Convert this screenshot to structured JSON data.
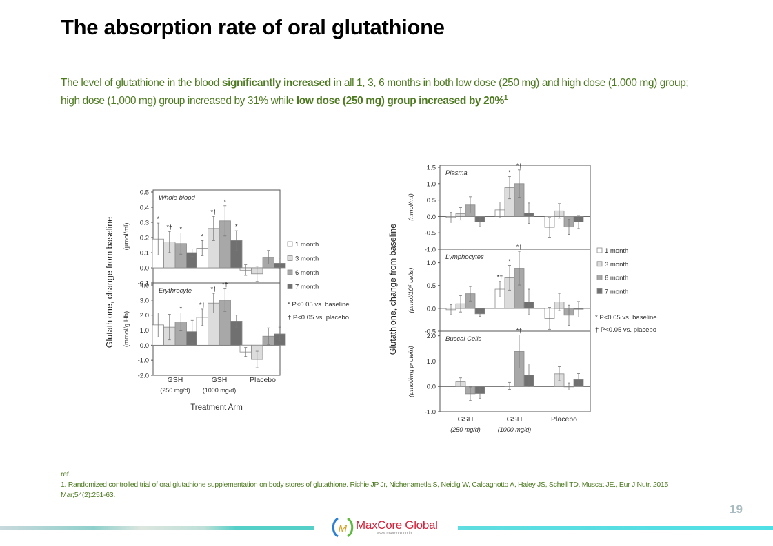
{
  "slide": {
    "title": "The absorption rate of oral glutathione",
    "description": {
      "p1": "The level of glutathione in the blood ",
      "b1": "significantly increased",
      "p2": " in all 1, 3, 6 months in both low dose (250 mg) and high dose (1,000 mg) group; high dose (1,000 mg) group increased by 31% while ",
      "b2": "low dose (250 mg) group increased by 20%",
      "sup": "1"
    },
    "reference": {
      "label": "ref.",
      "text": "1. Randomized controlled trial of oral glutathione supplementation on body stores of glutathione. Richie JP Jr, Nichenametla S, Neidig W, Calcagnotto A, Haley JS, Schell TD, Muscat JE., Eur J Nutr. 2015 Mar;54(2):251-63."
    },
    "page_number": "19",
    "logo": {
      "name": "MaxCore Global",
      "url": "www.maxcore.co.kr",
      "icon": "m-leaf-logo-icon"
    }
  },
  "colors": {
    "text_green": "#4e7a22",
    "series": [
      "#ffffff",
      "#dcdcdc",
      "#a8a8a8",
      "#707070"
    ],
    "bar_edge": "#8a8a8a",
    "footer_teal": "#55d0c8",
    "logo_red": "#d4243c"
  },
  "chart_data": [
    {
      "type": "bar",
      "title": "Whole blood / Erythrocyte",
      "ylabel": "Glutathione, change from baseline",
      "xlabel": "Treatment Arm",
      "categories": [
        "GSH|(250 mg/d)",
        "GSH|(1000 mg/d)",
        "Placebo"
      ],
      "legend": [
        "1 month",
        "3 month",
        "6 month",
        "7 month"
      ],
      "legend_position": "right",
      "notes": [
        "* P<0.05 vs. baseline",
        "† P<0.05 vs. placebo"
      ],
      "panels": [
        {
          "name": "Whole blood",
          "unit": "(µmol/ml)",
          "ylim": [
            -0.1,
            0.5
          ],
          "ticks": [
            "0.5",
            "0.4",
            "0.3",
            "0.2",
            "0.1",
            "0.0",
            "-0.1"
          ],
          "tick_values": [
            0.5,
            0.4,
            0.3,
            0.2,
            0.1,
            0.0,
            -0.1
          ],
          "series": [
            {
              "name": "1 month",
              "values": [
                0.19,
                0.13,
                -0.015
              ],
              "err": [
                0.105,
                0.05,
                0.035
              ],
              "marks": [
                "*",
                "*",
                ""
              ]
            },
            {
              "name": "3 month",
              "values": [
                0.17,
                0.26,
                -0.04
              ],
              "err": [
                0.07,
                0.08,
                0.05
              ],
              "marks": [
                "*†",
                "*†",
                ""
              ]
            },
            {
              "name": "6 month",
              "values": [
                0.16,
                0.31,
                0.07
              ],
              "err": [
                0.07,
                0.1,
                0.045
              ],
              "marks": [
                "*",
                "*",
                ""
              ]
            },
            {
              "name": "7 month",
              "values": [
                0.1,
                0.18,
                0.03
              ],
              "err": [
                0.025,
                0.065,
                0.035
              ],
              "marks": [
                "",
                "*",
                ""
              ]
            }
          ]
        },
        {
          "name": "Erythrocyte",
          "unit": "(mmol/g Hb)",
          "ylim": [
            -2.0,
            4.0
          ],
          "ticks": [
            "4.0",
            "3.0",
            "2.0",
            "1.0",
            "0.0",
            "-1.0",
            "-2.0"
          ],
          "tick_values": [
            4,
            3,
            2,
            1,
            0,
            -1,
            -2
          ],
          "series": [
            {
              "name": "1 month",
              "values": [
                1.35,
                1.85,
                -0.45
              ],
              "err": [
                0.8,
                0.55,
                0.3
              ],
              "marks": [
                "",
                "*†",
                ""
              ]
            },
            {
              "name": "3 month",
              "values": [
                1.2,
                2.8,
                -0.95
              ],
              "err": [
                0.85,
                0.65,
                0.55
              ],
              "marks": [
                "",
                "*†",
                ""
              ]
            },
            {
              "name": "6 month",
              "values": [
                1.55,
                3.0,
                0.6
              ],
              "err": [
                0.6,
                0.75,
                0.55
              ],
              "marks": [
                "*",
                "*†",
                ""
              ]
            },
            {
              "name": "7 month",
              "values": [
                0.9,
                1.6,
                0.75
              ],
              "err": [
                0.75,
                0.4,
                0.45
              ],
              "marks": [
                "",
                "",
                ""
              ]
            }
          ]
        }
      ]
    },
    {
      "type": "bar",
      "title": "Plasma / Lymphocytes / Buccal Cells",
      "ylabel": "Glutathione, change from baseline",
      "xlabel": "",
      "categories": [
        "GSH|(250 mg/d)",
        "GSH|(1000 mg/d)",
        "Placebo"
      ],
      "legend": [
        "1 month",
        "3 month",
        "6 month",
        "7 month"
      ],
      "legend_position": "right",
      "notes": [
        "* P<0.05 vs. baseline",
        "† P<0.05 vs. placebo"
      ],
      "panels": [
        {
          "name": "Plasma",
          "unit": "(nmol/ml)",
          "ylim": [
            -1.0,
            1.5
          ],
          "ticks": [
            "1.5",
            "1.0",
            "0.5",
            "0.0",
            "-0.5",
            "-1.0"
          ],
          "tick_values": [
            1.5,
            1.0,
            0.5,
            0.0,
            -0.5,
            -1.0
          ],
          "series": [
            {
              "name": "1 month",
              "values": [
                -0.03,
                0.2,
                -0.33
              ],
              "err": [
                0.15,
                0.24,
                0.3
              ],
              "marks": [
                "",
                "",
                ""
              ]
            },
            {
              "name": "3 month",
              "values": [
                0.08,
                0.88,
                0.17
              ],
              "err": [
                0.19,
                0.34,
                0.22
              ],
              "marks": [
                "",
                "*",
                ""
              ]
            },
            {
              "name": "6 month",
              "values": [
                0.35,
                1.0,
                -0.32
              ],
              "err": [
                0.25,
                0.42,
                0.23
              ],
              "marks": [
                "",
                "*†",
                ""
              ]
            },
            {
              "name": "7 month",
              "values": [
                -0.17,
                0.1,
                -0.17
              ],
              "err": [
                0.14,
                0.31,
                0.2
              ],
              "marks": [
                "",
                "",
                ""
              ]
            }
          ]
        },
        {
          "name": "Lymphocytes",
          "unit": "(µmol/10⁶ cells)",
          "ylim": [
            -0.5,
            1.25
          ],
          "ticks": [
            "1.0",
            "0.5",
            "0.0",
            "-0.5"
          ],
          "tick_values": [
            1.0,
            0.5,
            0.0,
            -0.5
          ],
          "series": [
            {
              "name": "1 month",
              "values": [
                -0.03,
                0.42,
                -0.22
              ],
              "err": [
                0.11,
                0.17,
                0.24
              ],
              "marks": [
                "",
                "*†",
                ""
              ]
            },
            {
              "name": "3 month",
              "values": [
                0.1,
                0.67,
                0.14
              ],
              "err": [
                0.18,
                0.27,
                0.19
              ],
              "marks": [
                "",
                "*",
                ""
              ]
            },
            {
              "name": "6 month",
              "values": [
                0.32,
                0.88,
                -0.15
              ],
              "err": [
                0.16,
                0.37,
                0.22
              ],
              "marks": [
                "",
                "*†",
                ""
              ]
            },
            {
              "name": "7 month",
              "values": [
                -0.12,
                0.14,
                -0.02
              ],
              "err": [
                0.06,
                0.28,
                0.17
              ],
              "marks": [
                "",
                "",
                ""
              ]
            }
          ]
        },
        {
          "name": "Buccal Cells",
          "unit": "(µmol/mg protein)",
          "ylim": [
            -1.0,
            2.1
          ],
          "ticks": [
            "2.0",
            "1.0",
            "0.0",
            "-1.0"
          ],
          "tick_values": [
            2.0,
            1.0,
            0.0,
            -1.0
          ],
          "series": [
            {
              "name": "1 month",
              "values": [
                null,
                null,
                null
              ],
              "err": [
                0,
                0,
                0
              ],
              "marks": [
                "",
                "",
                ""
              ]
            },
            {
              "name": "3 month",
              "values": [
                0.18,
                0.02,
                0.5
              ],
              "err": [
                0.16,
                0.14,
                0.28
              ],
              "marks": [
                "",
                "",
                ""
              ]
            },
            {
              "name": "6 month",
              "values": [
                -0.29,
                1.38,
                0.0
              ],
              "err": [
                0.27,
                0.65,
                0.14
              ],
              "marks": [
                "",
                "*†",
                ""
              ]
            },
            {
              "name": "7 month",
              "values": [
                -0.28,
                0.45,
                0.27
              ],
              "err": [
                0.2,
                0.44,
                0.24
              ],
              "marks": [
                "",
                "",
                ""
              ]
            }
          ]
        }
      ]
    }
  ]
}
